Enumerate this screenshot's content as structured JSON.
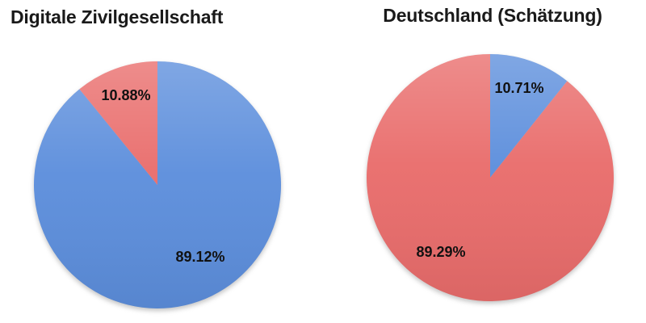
{
  "figure": {
    "background": "#ffffff"
  },
  "colors": {
    "blue": "#5c8edc",
    "red": "#e96c6b",
    "title_text": "#1a1a1a",
    "label_text": "#111111"
  },
  "chart_data": [
    {
      "type": "pie",
      "title": "Digitale Zivilgesellschaft",
      "start_angle_deg": 0,
      "direction": "clockwise",
      "legend": "none",
      "slices": [
        {
          "name": "blue",
          "value": 89.12,
          "label": "89.12%",
          "color": "#5c8edc"
        },
        {
          "name": "red",
          "value": 10.88,
          "label": "10.88%",
          "color": "#e96c6b"
        }
      ]
    },
    {
      "type": "pie",
      "title": "Deutschland (Schätzung)",
      "start_angle_deg": 0,
      "direction": "clockwise",
      "legend": "none",
      "slices": [
        {
          "name": "blue",
          "value": 10.71,
          "label": "10.71%",
          "color": "#5c8edc"
        },
        {
          "name": "red",
          "value": 89.29,
          "label": "89.29%",
          "color": "#e96c6b"
        }
      ]
    }
  ]
}
